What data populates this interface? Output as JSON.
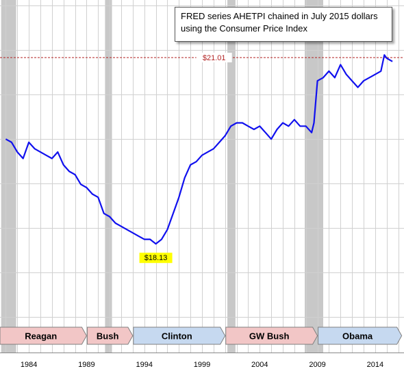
{
  "chart_data": {
    "type": "line",
    "title": "",
    "xlabel": "",
    "ylabel": "",
    "legend_text": [
      "FRED series AHETPI chained in July 2015 dollars",
      "using the Consumer Price Index"
    ],
    "legend_placement": "top-right",
    "grid": true,
    "x_tick_labels": [
      "1984",
      "1989",
      "1994",
      "1999",
      "2004",
      "2009",
      "2014"
    ],
    "x_tick_years": [
      1984,
      1989,
      1994,
      1999,
      2004,
      2009,
      2014
    ],
    "xlim": [
      1981.5,
      2016.5
    ],
    "ylim": [
      17.0,
      21.9
    ],
    "recessions": [
      [
        1981.6,
        1982.9
      ],
      [
        1990.6,
        1991.2
      ],
      [
        2001.2,
        2001.9
      ],
      [
        2007.9,
        2009.5
      ]
    ],
    "reference_line": {
      "value": 21.01,
      "label": "$21.01",
      "color": "#b22222"
    },
    "min_annotation": {
      "x": 1995.0,
      "value": 18.13,
      "label": "$18.13",
      "highlight": "#ffff00"
    },
    "line_color": "#1010ee",
    "series": [
      {
        "x": [
          1982.0,
          1982.5,
          1983.0,
          1983.5,
          1984.0,
          1984.5,
          1985.0,
          1985.5,
          1986.0,
          1986.5,
          1987.0,
          1987.5,
          1988.0,
          1988.5,
          1989.0,
          1989.5,
          1990.0,
          1990.5,
          1991.0,
          1991.5,
          1992.0,
          1992.5,
          1993.0,
          1993.5,
          1994.0,
          1994.5,
          1995.0,
          1995.5,
          1996.0,
          1996.5,
          1997.0,
          1997.5,
          1998.0,
          1998.5,
          1999.0,
          1999.5,
          2000.0,
          2000.5,
          2001.0,
          2001.5,
          2002.0,
          2002.5,
          2003.0,
          2003.5,
          2004.0,
          2004.5,
          2005.0,
          2005.5,
          2006.0,
          2006.5,
          2007.0,
          2007.5,
          2008.0,
          2008.5,
          2008.7,
          2009.0,
          2009.5,
          2010.0,
          2010.5,
          2011.0,
          2011.5,
          2012.0,
          2012.5,
          2013.0,
          2013.5,
          2014.0,
          2014.5,
          2014.8,
          2015.0,
          2015.5
        ],
        "values": [
          19.75,
          19.7,
          19.55,
          19.45,
          19.7,
          19.6,
          19.55,
          19.5,
          19.45,
          19.55,
          19.35,
          19.25,
          19.2,
          19.05,
          19.0,
          18.9,
          18.85,
          18.6,
          18.55,
          18.45,
          18.4,
          18.35,
          18.3,
          18.25,
          18.2,
          18.2,
          18.13,
          18.2,
          18.35,
          18.6,
          18.85,
          19.15,
          19.35,
          19.4,
          19.5,
          19.55,
          19.6,
          19.7,
          19.8,
          19.95,
          20.0,
          20.0,
          19.95,
          19.9,
          19.95,
          19.85,
          19.75,
          19.9,
          20.0,
          19.95,
          20.05,
          19.95,
          19.95,
          19.85,
          20.0,
          20.65,
          20.7,
          20.8,
          20.7,
          20.9,
          20.75,
          20.65,
          20.55,
          20.65,
          20.7,
          20.75,
          20.8,
          21.05,
          21.0,
          20.95
        ]
      }
    ]
  },
  "presidents": [
    {
      "name": "Reagan",
      "start": 1981.5,
      "end": 1989.0,
      "color": "#f2c6c6"
    },
    {
      "name": "Bush",
      "start": 1989.0,
      "end": 1993.0,
      "color": "#f2c6c6"
    },
    {
      "name": "Clinton",
      "start": 1993.0,
      "end": 2001.0,
      "color": "#c6d9f0"
    },
    {
      "name": "GW Bush",
      "start": 2001.0,
      "end": 2009.0,
      "color": "#f2c6c6"
    },
    {
      "name": "Obama",
      "start": 2009.0,
      "end": 2016.3,
      "color": "#c6d9f0"
    }
  ]
}
